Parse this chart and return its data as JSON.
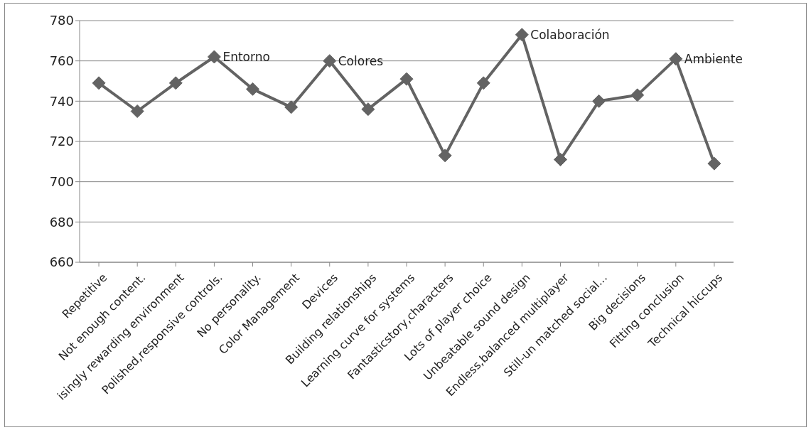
{
  "chart_data": {
    "type": "line",
    "categories": [
      "Repetitive",
      "Not enough content.",
      "isingly rewarding environment",
      "Polished,responsive controls.",
      "No personality.",
      "Color Management",
      "Devices",
      "Building relationships",
      "Learning curve for systems",
      "Fantasticstory,characters",
      "Lots of player choice",
      "Unbeatable sound design",
      "Endless,balanced multiplayer",
      "Still-un matched social...",
      "Big decisions",
      "Fitting conclusion",
      "Technical hiccups"
    ],
    "values": [
      749,
      735,
      749,
      762,
      746,
      737,
      760,
      736,
      751,
      713,
      749,
      773,
      711,
      740,
      743,
      761,
      709
    ],
    "color": "#636363",
    "marker": "diamond",
    "line_style": "solid",
    "ylim": [
      660,
      780
    ],
    "yticks": [
      660,
      680,
      700,
      720,
      740,
      760,
      780
    ],
    "grid": "y",
    "annotations": [
      {
        "text": "Entorno",
        "x": "Polished,responsive controls.",
        "y": 762
      },
      {
        "text": "Colores",
        "x": "Devices",
        "y": 760
      },
      {
        "text": "Colaboración",
        "x": "Unbeatable sound design",
        "y": 773
      },
      {
        "text": "Ambiente",
        "x": "Fitting conclusion",
        "y": 761
      }
    ]
  }
}
